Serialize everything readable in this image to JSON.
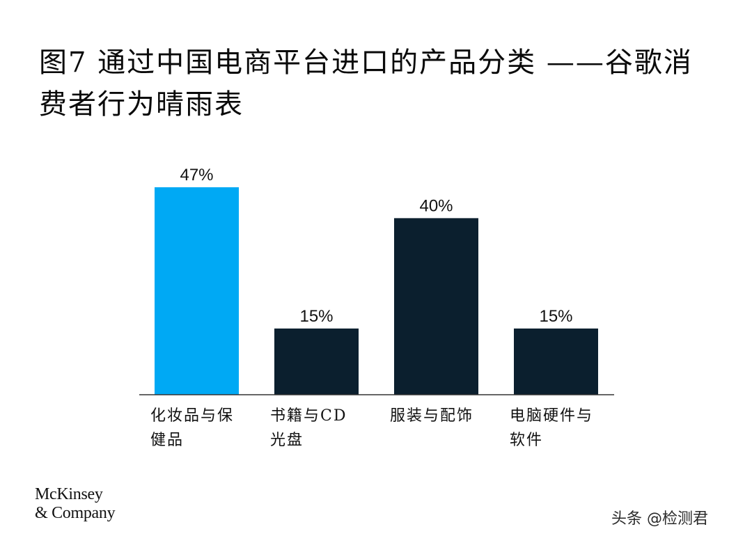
{
  "title": "图7 通过中国电商平台进口的产品分类 ——谷歌消费者行为晴雨表",
  "chart_data": {
    "type": "bar",
    "categories": [
      [
        "化妆品与保",
        "健品"
      ],
      [
        "书籍与CD",
        "光盘"
      ],
      [
        "服装与配饰"
      ],
      [
        "电脑硬件与",
        "软件"
      ]
    ],
    "values": [
      47,
      15,
      40,
      15
    ],
    "value_labels": [
      "47%",
      "15%",
      "40%",
      "15%"
    ],
    "colors": [
      "#00a9f4",
      "#0b1f2e",
      "#0b1f2e",
      "#0b1f2e"
    ],
    "ylim": [
      0,
      50
    ],
    "grid": false,
    "xlabel": "",
    "ylabel": ""
  },
  "logo": {
    "line1": "McKinsey",
    "line2": "& Company"
  },
  "watermark": "头条 @检测君"
}
